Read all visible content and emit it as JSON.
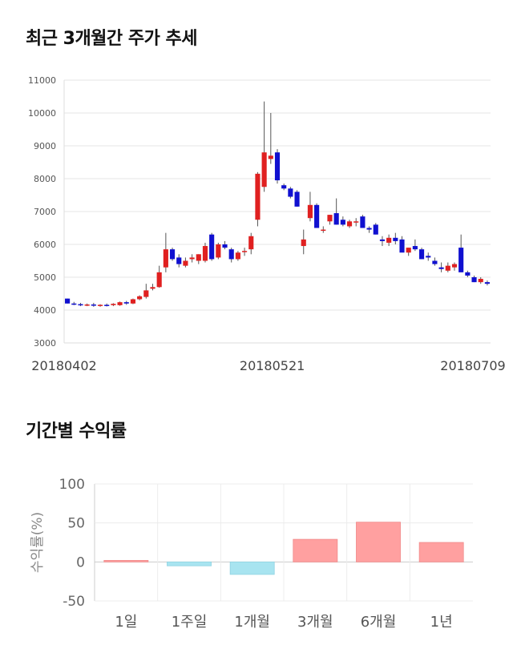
{
  "sections": {
    "price_title": "최근 3개월간 주가 추세",
    "return_title": "기간별 수익률"
  },
  "chart_data": [
    {
      "type": "candlestick",
      "title": "최근 3개월간 주가 추세",
      "ylim": [
        3000,
        11000
      ],
      "y_ticks": [
        3000,
        4000,
        5000,
        6000,
        7000,
        8000,
        9000,
        10000,
        11000
      ],
      "x_tick_labels": [
        "20180402",
        "20180521",
        "20180709"
      ],
      "grid": true,
      "colors": {
        "up": "#e02020",
        "down": "#1010d0",
        "wick": "#555555"
      },
      "candles": [
        [
          4350,
          4350,
          4200,
          4200
        ],
        [
          4200,
          4250,
          4150,
          4180
        ],
        [
          4180,
          4220,
          4120,
          4150
        ],
        [
          4150,
          4200,
          4120,
          4170
        ],
        [
          4170,
          4220,
          4100,
          4140
        ],
        [
          4140,
          4180,
          4100,
          4160
        ],
        [
          4160,
          4200,
          4110,
          4150
        ],
        [
          4150,
          4210,
          4120,
          4190
        ],
        [
          4150,
          4260,
          4130,
          4240
        ],
        [
          4240,
          4280,
          4160,
          4200
        ],
        [
          4200,
          4350,
          4180,
          4330
        ],
        [
          4330,
          4450,
          4300,
          4420
        ],
        [
          4400,
          4800,
          4350,
          4600
        ],
        [
          4650,
          4800,
          4600,
          4700
        ],
        [
          4700,
          5350,
          4680,
          5150
        ],
        [
          5300,
          6350,
          5150,
          5850
        ],
        [
          5850,
          5900,
          5500,
          5550
        ],
        [
          5600,
          5700,
          5300,
          5400
        ],
        [
          5350,
          5600,
          5300,
          5500
        ],
        [
          5550,
          5700,
          5450,
          5600
        ],
        [
          5500,
          5700,
          5400,
          5700
        ],
        [
          5500,
          6050,
          5450,
          5950
        ],
        [
          6300,
          6350,
          5500,
          5550
        ],
        [
          5600,
          6050,
          5550,
          6000
        ],
        [
          6000,
          6100,
          5850,
          5900
        ],
        [
          5850,
          5900,
          5450,
          5550
        ],
        [
          5550,
          5800,
          5500,
          5750
        ],
        [
          5800,
          5900,
          5650,
          5800
        ],
        [
          5850,
          6350,
          5700,
          6250
        ],
        [
          6750,
          8200,
          6550,
          8150
        ],
        [
          7750,
          10350,
          7600,
          8800
        ],
        [
          8600,
          10000,
          8450,
          8700
        ],
        [
          8800,
          8900,
          7850,
          7950
        ],
        [
          7800,
          7850,
          7650,
          7700
        ],
        [
          7700,
          7750,
          7400,
          7450
        ],
        [
          7600,
          7650,
          7150,
          7150
        ],
        [
          5950,
          6450,
          5700,
          6150
        ],
        [
          6800,
          7600,
          6700,
          7200
        ],
        [
          7200,
          7250,
          6500,
          6500
        ],
        [
          6450,
          6550,
          6350,
          6450
        ],
        [
          6700,
          6900,
          6600,
          6900
        ],
        [
          6950,
          7400,
          6600,
          6600
        ],
        [
          6750,
          6850,
          6550,
          6600
        ],
        [
          6550,
          6750,
          6500,
          6700
        ],
        [
          6700,
          6800,
          6550,
          6700
        ],
        [
          6850,
          6900,
          6550,
          6500
        ],
        [
          6500,
          6550,
          6350,
          6450
        ],
        [
          6600,
          6650,
          6300,
          6300
        ],
        [
          6150,
          6250,
          5950,
          6100
        ],
        [
          6050,
          6300,
          5950,
          6200
        ],
        [
          6200,
          6350,
          6000,
          6100
        ],
        [
          6150,
          6250,
          5800,
          5750
        ],
        [
          5750,
          5900,
          5650,
          5900
        ],
        [
          5950,
          6150,
          5800,
          5850
        ],
        [
          5850,
          5900,
          5550,
          5550
        ],
        [
          5650,
          5750,
          5500,
          5600
        ],
        [
          5500,
          5600,
          5350,
          5400
        ],
        [
          5300,
          5450,
          5150,
          5250
        ],
        [
          5200,
          5450,
          5150,
          5350
        ],
        [
          5300,
          5450,
          5200,
          5400
        ],
        [
          5900,
          6300,
          5150,
          5150
        ],
        [
          5150,
          5200,
          5000,
          5050
        ],
        [
          5000,
          5050,
          4850,
          4850
        ],
        [
          4850,
          5000,
          4800,
          4950
        ],
        [
          4850,
          4900,
          4750,
          4800
        ]
      ]
    },
    {
      "type": "bar",
      "title": "기간별 수익률",
      "ylabel": "수익률(%)",
      "ylim": [
        -50,
        100
      ],
      "y_ticks": [
        100,
        50,
        0,
        -50
      ],
      "grid": true,
      "categories": [
        "1일",
        "1주일",
        "1개월",
        "3개월",
        "6개월",
        "1년"
      ],
      "values": [
        2,
        -5,
        -16,
        29,
        51,
        25
      ],
      "colors": {
        "positive": "#ffa0a0",
        "negative": "#a8e4f0"
      }
    }
  ]
}
